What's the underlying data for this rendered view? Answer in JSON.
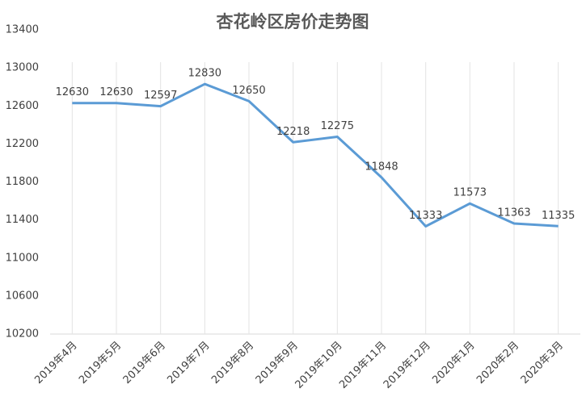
{
  "chart_data": {
    "type": "line",
    "title": "杏花岭区房价走势图",
    "categories": [
      "2019年4月",
      "2019年5月",
      "2019年6月",
      "2019年7月",
      "2019年8月",
      "2019年9月",
      "2019年10月",
      "2019年11月",
      "2019年12月",
      "2020年1月",
      "2020年2月",
      "2020年3月"
    ],
    "values": [
      12630,
      12630,
      12597,
      12830,
      12650,
      12218,
      12275,
      11848,
      11333,
      11573,
      11363,
      11335
    ],
    "color": "#5b9bd5",
    "ylim": [
      10200,
      13400
    ],
    "yticks": [
      10200,
      10600,
      11000,
      11400,
      11800,
      12200,
      12600,
      13000,
      13400
    ],
    "grid": true
  }
}
